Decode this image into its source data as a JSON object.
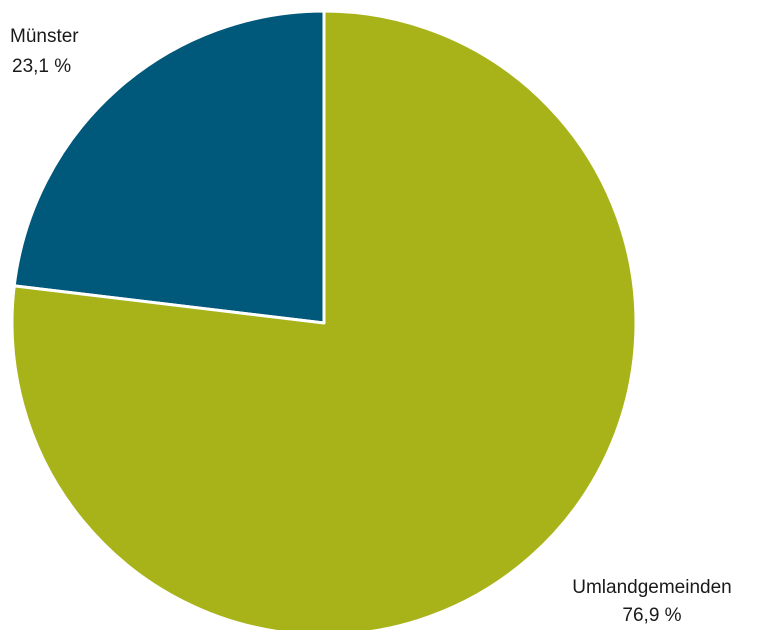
{
  "chart_data": {
    "type": "pie",
    "categories": [
      "Münster",
      "Umlandgemeinden"
    ],
    "values": [
      23.1,
      76.9
    ],
    "value_labels": [
      "23,1 %",
      "76,9 %"
    ],
    "colors": [
      "#00587a",
      "#a8b31a"
    ],
    "slice_border_color": "#ffffff",
    "start_angle": "12 o'clock",
    "direction": "counter-clockwise from top for Münster",
    "title": "",
    "legend": "none"
  }
}
